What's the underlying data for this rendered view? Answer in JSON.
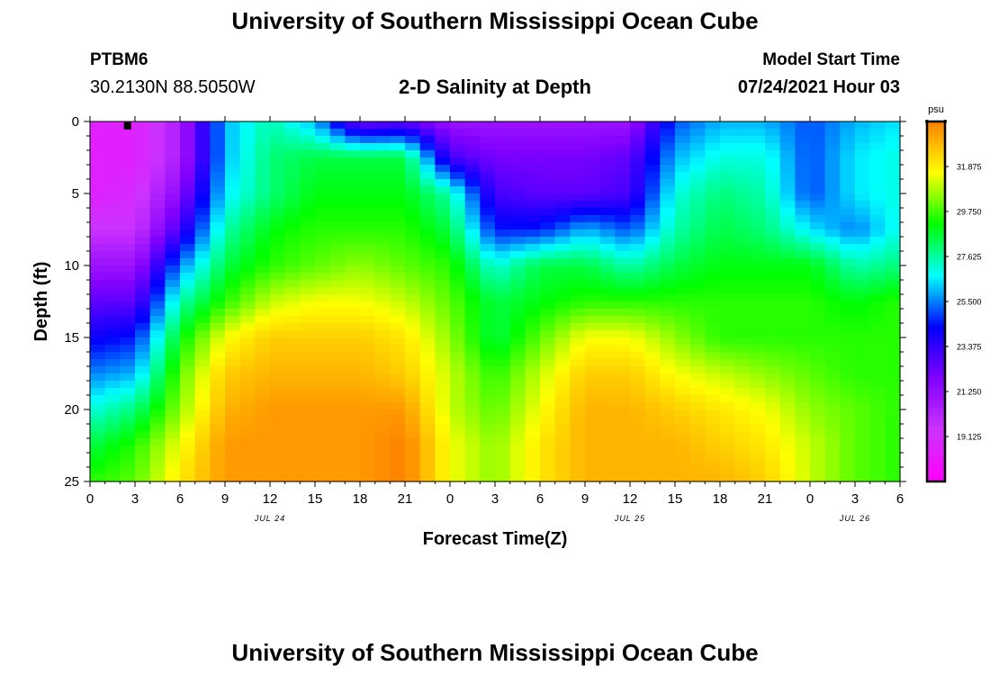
{
  "header": {
    "title": "University of Southern Mississippi Ocean Cube",
    "station_id": "PTBM6",
    "station_coords": "30.2130N  88.5050W",
    "subtitle": "2-D Salinity at Depth",
    "start_label": "Model Start Time",
    "start_value": "07/24/2021 Hour 03"
  },
  "footer": {
    "title": "University of Southern Mississippi Ocean Cube"
  },
  "chart_data": {
    "type": "heatmap",
    "title": "2-D Salinity at Depth",
    "xlabel": "Forecast Time(Z)",
    "ylabel": "Depth (ft)",
    "xlim": [
      0,
      54
    ],
    "ylim": [
      0,
      25
    ],
    "y_inverted": true,
    "x_tick_labels": [
      "0",
      "3",
      "6",
      "9",
      "12",
      "15",
      "18",
      "21",
      "0",
      "3",
      "6",
      "9",
      "12",
      "15",
      "18",
      "21",
      "0",
      "3",
      "6"
    ],
    "x_tick_values": [
      0,
      3,
      6,
      9,
      12,
      15,
      18,
      21,
      24,
      27,
      30,
      33,
      36,
      39,
      42,
      45,
      48,
      51,
      54
    ],
    "y_tick_values": [
      0,
      5,
      10,
      15,
      20,
      25
    ],
    "y_tick_labels": [
      "0",
      "5",
      "10",
      "15",
      "20",
      "25"
    ],
    "date_labels": [
      {
        "text": "JUL 24",
        "x": 12
      },
      {
        "text": "JUL 25",
        "x": 36
      },
      {
        "text": "JUL 26",
        "x": 51
      }
    ],
    "marker": {
      "x": 2.5,
      "y": 0.3
    },
    "colorbar": {
      "unit": "psu",
      "min": 17.0,
      "max": 34.0,
      "tick_values": [
        19.125,
        21.25,
        23.375,
        25.5,
        27.625,
        29.75,
        31.875
      ],
      "tick_labels": [
        "19.125",
        "21.250",
        "23.375",
        "25.500",
        "27.625",
        "29.750",
        "31.875"
      ],
      "palette": [
        "#ff00ff",
        "#cc33ff",
        "#8000ff",
        "#0000ff",
        "#00ffff",
        "#00ff00",
        "#ffff00",
        "#ff8000"
      ]
    },
    "grid_x_hours": [
      0,
      3,
      6,
      9,
      12,
      15,
      18,
      21,
      24,
      27,
      30,
      33,
      36,
      39,
      42,
      45,
      48,
      51,
      54
    ],
    "grid_depths_ft": [
      0,
      2.5,
      5,
      7.5,
      10,
      12.5,
      15,
      17.5,
      20,
      22.5,
      25
    ],
    "salinity_psu": [
      [
        18.5,
        18.5,
        20.5,
        26,
        27.5,
        26,
        22,
        22.5,
        21,
        21,
        21,
        21,
        21,
        25,
        26,
        26,
        25,
        26,
        26.5
      ],
      [
        18.5,
        18.5,
        20.5,
        26,
        28,
        28.5,
        28.5,
        28.5,
        23,
        22,
        22,
        22,
        22.5,
        26,
        27,
        27,
        25,
        26.5,
        27
      ],
      [
        18.5,
        19,
        21.5,
        26.5,
        28,
        29,
        29,
        29,
        27.5,
        23,
        22.5,
        22.5,
        23,
        27,
        28,
        27.5,
        25,
        26.5,
        27
      ],
      [
        19.5,
        19.5,
        23,
        27.5,
        29,
        29.5,
        29.5,
        29.5,
        28.5,
        24.5,
        24.5,
        26,
        25,
        27.5,
        28.5,
        28,
        26.5,
        25.5,
        27
      ],
      [
        21,
        21,
        25.5,
        28.5,
        29.5,
        30,
        30.5,
        30,
        29.5,
        27,
        28.5,
        28.5,
        27.5,
        28.5,
        29,
        29,
        29,
        27.5,
        28
      ],
      [
        22.5,
        22.5,
        27.5,
        29.5,
        31,
        31.5,
        31.5,
        31,
        30,
        28.5,
        29,
        29.5,
        29.5,
        29.5,
        29.5,
        29.5,
        29.5,
        29,
        29.5
      ],
      [
        24,
        24.5,
        29,
        31.5,
        32.5,
        32.5,
        32.5,
        32,
        30.5,
        28.5,
        30,
        31.5,
        31.5,
        30.5,
        29.5,
        29.5,
        29.5,
        29.5,
        29.5
      ],
      [
        25.5,
        26,
        30,
        32.5,
        33,
        33,
        33,
        32.5,
        31,
        29.5,
        31,
        32.5,
        32.5,
        31.5,
        31,
        30.5,
        30,
        29.5,
        29.5
      ],
      [
        27,
        28,
        30.5,
        33,
        33.5,
        33.5,
        33.5,
        33.5,
        31,
        30,
        31.5,
        33,
        33,
        32.5,
        32,
        31.5,
        30.5,
        30,
        29.5
      ],
      [
        28.5,
        29.5,
        31.5,
        33.5,
        33.5,
        33.5,
        33.5,
        34,
        31.5,
        30.5,
        32,
        33,
        33,
        33,
        32.5,
        32,
        31,
        30,
        29.5
      ],
      [
        29.5,
        30,
        32,
        33.5,
        33.5,
        33.5,
        33.5,
        34,
        31.5,
        30.5,
        32,
        33,
        33,
        33,
        33,
        32.5,
        31,
        30,
        29.5
      ]
    ]
  }
}
